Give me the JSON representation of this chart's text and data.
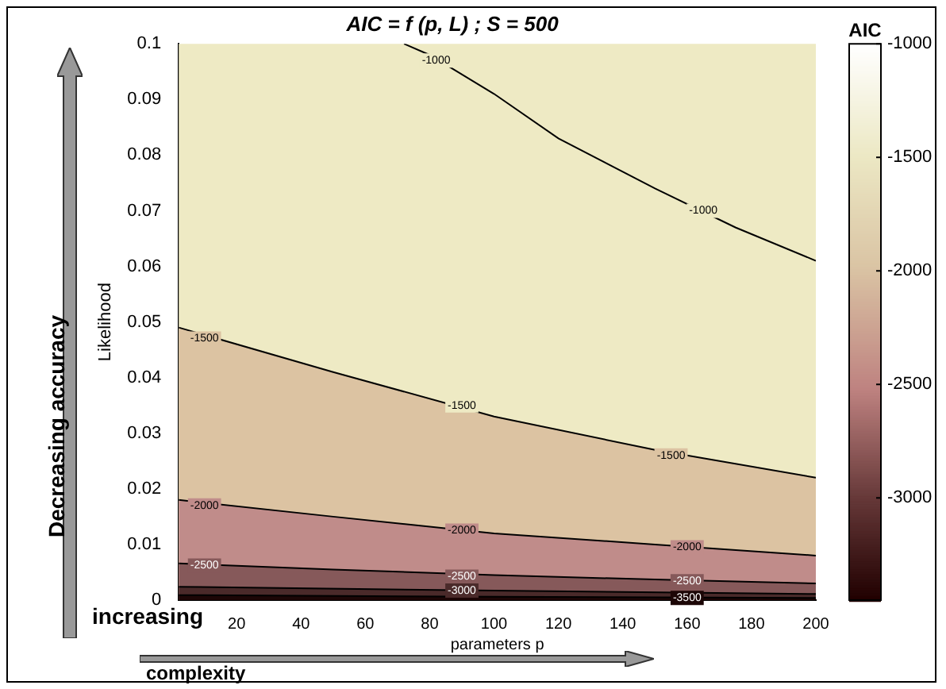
{
  "chart_data": {
    "type": "area",
    "title": "AIC = f (p, L) ; S = 500",
    "xlabel": "parameters p",
    "ylabel": "Likelihood",
    "clabel": "AIC",
    "xlim": [
      2,
      200
    ],
    "xticks": [
      20,
      40,
      60,
      80,
      100,
      120,
      140,
      160,
      180,
      200
    ],
    "ylim": [
      0,
      0.1
    ],
    "yticks": [
      0,
      0.01,
      0.02,
      0.03,
      0.04,
      0.05,
      0.06,
      0.07,
      0.08,
      0.09,
      0.1
    ],
    "clim": [
      -3450,
      -1000
    ],
    "cticks": [
      -1000,
      -1500,
      -2000,
      -2500,
      -3000
    ],
    "series": [
      {
        "color": "#eeeac4",
        "x": [
          72,
          80,
          100,
          120,
          150,
          175,
          200
        ],
        "values": [
          0.1,
          0.098,
          0.091,
          0.083,
          0.074,
          0.067,
          0.061
        ]
      },
      {
        "color": "#dcc3a2",
        "x": [
          2,
          50,
          100,
          150,
          200
        ],
        "values": [
          0.049,
          0.041,
          0.033,
          0.027,
          0.022
        ]
      },
      {
        "color": "#c08c8a",
        "x": [
          2,
          50,
          100,
          150,
          200
        ],
        "values": [
          0.018,
          0.015,
          0.012,
          0.01,
          0.008
        ]
      },
      {
        "color": "#86595a",
        "x": [
          2,
          50,
          100,
          150,
          200
        ],
        "values": [
          0.0066,
          0.0055,
          0.0045,
          0.0037,
          0.003
        ]
      },
      {
        "color": "#4a2a2a",
        "x": [
          2,
          100,
          200
        ],
        "values": [
          0.0024,
          0.0017,
          0.0011
        ]
      },
      {
        "color": "#1c0606",
        "x": [
          2,
          100,
          200
        ],
        "values": [
          0.0009,
          0.0006,
          0.0004
        ]
      }
    ],
    "annotations": [
      "Decreasing accuracy",
      "increasing",
      "complexity",
      {
        "text": "-1000",
        "x": 82,
        "y": 0.097
      },
      {
        "text": "-1000",
        "x": 165,
        "y": 0.07
      },
      {
        "text": "-1500",
        "x": 10,
        "y": 0.047
      },
      {
        "text": "-1500",
        "x": 90,
        "y": 0.035
      },
      {
        "text": "-1500",
        "x": 155,
        "y": 0.026
      },
      {
        "text": "-2000",
        "x": 10,
        "y": 0.017
      },
      {
        "text": "-2000",
        "x": 90,
        "y": 0.0125
      },
      {
        "text": "-2000",
        "x": 160,
        "y": 0.0095
      },
      {
        "text": "-2500",
        "x": 10,
        "y": 0.0062
      },
      {
        "text": "-2500",
        "x": 90,
        "y": 0.0042
      },
      {
        "text": "-2500",
        "x": 160,
        "y": 0.0034
      },
      {
        "text": "-3000",
        "x": 90,
        "y": 0.0017
      },
      {
        "text": "-3500",
        "x": 160,
        "y": 0.0004
      }
    ]
  }
}
